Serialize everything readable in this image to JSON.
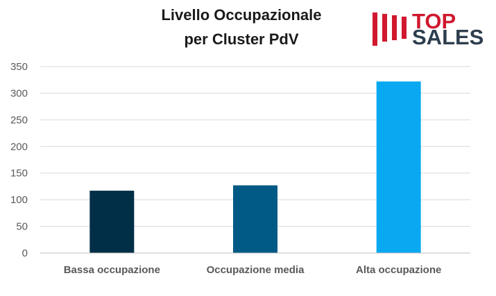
{
  "logo": {
    "line1": "TOP",
    "line2": "SALES",
    "bars_color": "#d0182e",
    "line1_color": "#d0182e",
    "line2_color": "#2f3e4e"
  },
  "chart_data": {
    "type": "bar",
    "title_lines": [
      "Livello Occupazionale",
      "per Cluster PdV"
    ],
    "categories": [
      "Bassa occupazione",
      "Occupazione media",
      "Alta occupazione"
    ],
    "values": [
      117,
      127,
      322
    ],
    "colors": [
      "#002f47",
      "#005a85",
      "#0aa8f0"
    ],
    "ylim": [
      0,
      350
    ],
    "yticks": [
      0,
      50,
      100,
      150,
      200,
      250,
      300,
      350
    ],
    "xlabel": "",
    "ylabel": "",
    "grid": true,
    "legend": "none"
  }
}
